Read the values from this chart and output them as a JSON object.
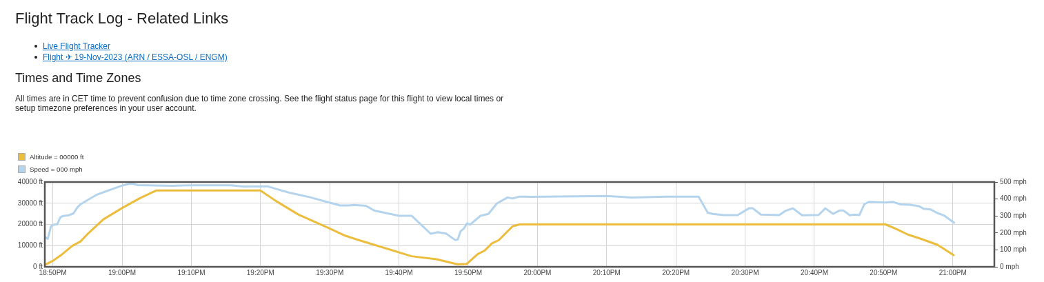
{
  "chart_data": {
    "type": "line",
    "title": "Flight Track Log - Related Links",
    "subtitle": "Times and Time Zones",
    "annotations": [
      "Live Flight Tracker",
      "Flight ✈ 19-Nov-2023 (ARN / ESSA-OSL / ENGM)",
      "All times are in CET time to prevent confusion due to time zone crossing. See the flight status page for this flight to view local times or setup timezone preferences in your user account."
    ],
    "series": [
      {
        "name": "Altitude = 00000 ft",
        "color": "#ecbc3c",
        "axis": "y",
        "x": [
          18.815,
          18.833,
          18.853,
          18.88,
          18.9,
          18.916,
          18.955,
          18.999,
          19.043,
          19.082,
          19.333,
          19.37,
          19.425,
          19.497,
          19.537,
          19.57,
          19.697,
          19.757,
          19.807,
          19.83,
          19.857,
          19.873,
          19.89,
          19.907,
          19.94,
          19.957,
          20.838,
          20.863,
          20.892,
          20.925,
          20.963,
          21.002
        ],
        "values": [
          1000,
          2800,
          5500,
          9900,
          12000,
          15300,
          22400,
          27600,
          32400,
          36000,
          36000,
          31100,
          24600,
          18300,
          14700,
          12600,
          5000,
          3600,
          1200,
          1400,
          6100,
          7700,
          11000,
          12600,
          19100,
          20000,
          20000,
          17900,
          15200,
          13100,
          10400,
          5500
        ]
      },
      {
        "name": "Speed = 000 mph",
        "color": "#b4d4ee",
        "axis": "y2",
        "x": [
          18.817,
          18.821,
          18.829,
          18.836,
          18.844,
          18.851,
          18.858,
          18.872,
          18.883,
          18.892,
          18.9,
          18.916,
          18.938,
          18.96,
          18.999,
          19.016,
          19.027,
          19.038,
          19.122,
          19.165,
          19.26,
          19.293,
          19.35,
          19.37,
          19.403,
          19.453,
          19.497,
          19.525,
          19.547,
          19.558,
          19.587,
          19.608,
          19.667,
          19.697,
          19.743,
          19.76,
          19.78,
          19.802,
          19.808,
          19.815,
          19.823,
          19.83,
          19.838,
          19.863,
          19.882,
          19.902,
          19.928,
          19.94,
          19.957,
          19.978,
          20.167,
          20.227,
          20.31,
          20.388,
          20.41,
          20.422,
          20.448,
          20.482,
          20.51,
          20.518,
          20.538,
          20.582,
          20.598,
          20.615,
          20.637,
          20.677,
          20.693,
          20.712,
          20.727,
          20.737,
          20.752,
          20.762,
          20.775,
          20.787,
          20.798,
          20.837,
          20.855,
          20.875,
          20.897,
          20.918,
          20.93,
          20.947,
          20.963,
          20.98,
          21.003
        ],
        "values": [
          172,
          165,
          240,
          249,
          251,
          291,
          300,
          304,
          315,
          349,
          369,
          392,
          424,
          444,
          478,
          489,
          489,
          482,
          478,
          481,
          481,
          474,
          475,
          460,
          437,
          410,
          380,
          362,
          362,
          365,
          360,
          331,
          301,
          301,
          195,
          204,
          196,
          158,
          161,
          210,
          226,
          256,
          249,
          301,
          312,
          373,
          409,
          403,
          414,
          413,
          418,
          409,
          414,
          414,
          319,
          312,
          305,
          305,
          346,
          346,
          308,
          305,
          331,
          345,
          304,
          306,
          345,
          312,
          332,
          332,
          304,
          308,
          305,
          369,
          383,
          379,
          383,
          368,
          366,
          358,
          342,
          338,
          317,
          301,
          260
        ]
      }
    ],
    "xlim": [
      18.814,
      21.1
    ],
    "xticks": [
      {
        "value": 18.8333,
        "label": "18:50PM"
      },
      {
        "value": 19,
        "label": "19:00PM"
      },
      {
        "value": 19.1667,
        "label": "19:10PM"
      },
      {
        "value": 19.3333,
        "label": "19:20PM"
      },
      {
        "value": 19.5,
        "label": "19:30PM"
      },
      {
        "value": 19.6667,
        "label": "19:40PM"
      },
      {
        "value": 19.8333,
        "label": "19:50PM"
      },
      {
        "value": 20,
        "label": "20:00PM"
      },
      {
        "value": 20.1667,
        "label": "20:10PM"
      },
      {
        "value": 20.3333,
        "label": "20:20PM"
      },
      {
        "value": 20.5,
        "label": "20:30PM"
      },
      {
        "value": 20.6667,
        "label": "20:40PM"
      },
      {
        "value": 20.8333,
        "label": "20:50PM"
      },
      {
        "value": 21,
        "label": "21:00PM"
      }
    ],
    "ylim": [
      0,
      40000
    ],
    "yticks": [
      {
        "value": 0,
        "label": "0 ft"
      },
      {
        "value": 10000,
        "label": "10000 ft"
      },
      {
        "value": 20000,
        "label": "20000 ft"
      },
      {
        "value": 30000,
        "label": "30000 ft"
      },
      {
        "value": 40000,
        "label": "40000 ft"
      }
    ],
    "y2lim": [
      0,
      500
    ],
    "y2ticks": [
      {
        "value": 0,
        "label": "0 mph"
      },
      {
        "value": 100,
        "label": "100 mph"
      },
      {
        "value": 200,
        "label": "200 mph"
      },
      {
        "value": 300,
        "label": "300 mph"
      },
      {
        "value": 400,
        "label": "400 mph"
      },
      {
        "value": 500,
        "label": "500 mph"
      }
    ],
    "grid": true,
    "legend": "top left"
  }
}
